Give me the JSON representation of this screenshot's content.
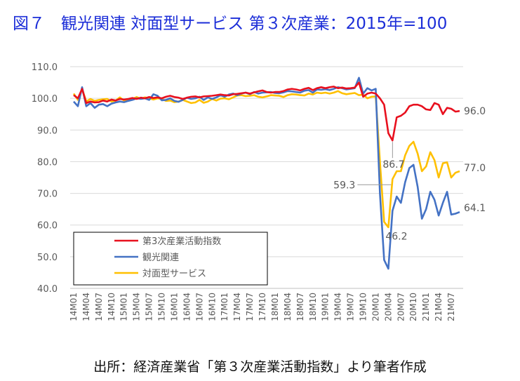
{
  "figure_title": "図７　観光関連 対面型サービス 第３次産業：2015年=100",
  "source_note": "出所：経済産業省「第３次産業活動指数」より筆者作成",
  "colors": {
    "tertiary": "#e8101e",
    "tourism": "#4472c4",
    "face_to_face": "#ffc000",
    "grid": "#d9d9d9",
    "axis_text": "#595959"
  },
  "chart_data": {
    "type": "line",
    "title": "",
    "xlabel": "",
    "ylabel": "",
    "ylim": [
      40,
      110
    ],
    "yticks": [
      "40.0",
      "50.0",
      "60.0",
      "70.0",
      "80.0",
      "90.0",
      "100.0",
      "110.0"
    ],
    "grid": true,
    "legend_placement": "bottom-left",
    "x": [
      "14M01",
      "14M02",
      "14M03",
      "14M04",
      "14M05",
      "14M06",
      "14M07",
      "14M08",
      "14M09",
      "14M10",
      "14M11",
      "14M12",
      "15M01",
      "15M02",
      "15M03",
      "15M04",
      "15M05",
      "15M06",
      "15M07",
      "15M08",
      "15M09",
      "15M10",
      "15M11",
      "15M12",
      "16M01",
      "16M02",
      "16M03",
      "16M04",
      "16M05",
      "16M06",
      "16M07",
      "16M08",
      "16M09",
      "16M10",
      "16M11",
      "16M12",
      "17M01",
      "17M02",
      "17M03",
      "17M04",
      "17M05",
      "17M06",
      "17M07",
      "17M08",
      "17M09",
      "17M10",
      "17M11",
      "17M12",
      "18M01",
      "18M02",
      "18M03",
      "18M04",
      "18M05",
      "18M06",
      "18M07",
      "18M08",
      "18M09",
      "18M10",
      "18M11",
      "18M12",
      "19M01",
      "19M02",
      "19M03",
      "19M04",
      "19M05",
      "19M06",
      "19M07",
      "19M08",
      "19M09",
      "19M10",
      "19M11",
      "19M12",
      "20M01",
      "20M02",
      "20M03",
      "20M04",
      "20M05",
      "20M06",
      "20M07",
      "20M08",
      "20M09",
      "20M10",
      "20M11",
      "20M12",
      "21M01",
      "21M02",
      "21M03",
      "21M04",
      "21M05",
      "21M06",
      "21M07",
      "21M08",
      "21M09"
    ],
    "xtick_labels": [
      "14M01",
      "14M04",
      "14M07",
      "14M10",
      "15M01",
      "15M04",
      "15M07",
      "15M10",
      "16M01",
      "16M04",
      "16M07",
      "16M10",
      "17M01",
      "17M04",
      "17M07",
      "17M10",
      "18M01",
      "18M04",
      "18M07",
      "18M10",
      "19M01",
      "19M04",
      "19M07",
      "19M10",
      "20M01",
      "20M04",
      "20M07",
      "20M10",
      "21M01",
      "21M04",
      "21M07"
    ],
    "series": [
      {
        "name": "第3次産業活動指数",
        "color_key": "tertiary",
        "values": [
          101.0,
          100.0,
          103.0,
          98.5,
          99.0,
          98.7,
          98.8,
          99.3,
          99.0,
          99.6,
          99.3,
          99.8,
          99.6,
          99.8,
          100.1,
          99.8,
          100.2,
          100.0,
          100.4,
          100.1,
          100.3,
          100.0,
          100.5,
          100.8,
          100.4,
          100.2,
          99.8,
          100.2,
          100.5,
          100.6,
          100.3,
          100.6,
          100.7,
          100.8,
          101.0,
          101.2,
          101.0,
          100.9,
          101.3,
          101.4,
          101.6,
          101.8,
          101.5,
          101.9,
          102.2,
          102.5,
          102.0,
          101.8,
          102.0,
          102.0,
          102.3,
          102.8,
          103.0,
          102.8,
          102.5,
          103.0,
          103.3,
          102.6,
          103.2,
          103.5,
          103.2,
          103.5,
          103.7,
          103.2,
          103.4,
          103.1,
          103.2,
          103.4,
          105.0,
          100.5,
          101.5,
          101.8,
          101.5,
          100.0,
          98.0,
          89.0,
          86.7,
          94.0,
          94.5,
          95.5,
          97.5,
          98.0,
          98.0,
          97.5,
          96.5,
          96.3,
          98.5,
          98.0,
          95.0,
          97.0,
          96.7,
          95.8,
          96.0
        ],
        "point_labels": [
          {
            "x": "20M05",
            "text": "86.7"
          },
          {
            "x": "21M09",
            "text": "96.0"
          }
        ]
      },
      {
        "name": "観光関連",
        "color_key": "tourism",
        "values": [
          99.0,
          97.5,
          103.5,
          97.5,
          98.5,
          97.0,
          98.0,
          98.2,
          97.5,
          98.3,
          98.7,
          99.0,
          98.8,
          99.2,
          99.5,
          100.0,
          99.8,
          100.0,
          99.5,
          101.3,
          100.8,
          99.4,
          99.5,
          100.0,
          99.2,
          98.9,
          99.5,
          100.2,
          99.8,
          100.0,
          100.5,
          99.5,
          100.3,
          99.8,
          100.3,
          101.0,
          100.5,
          101.2,
          101.5,
          101.0,
          101.5,
          101.8,
          101.3,
          102.0,
          101.5,
          101.8,
          101.9,
          102.0,
          101.7,
          101.6,
          101.9,
          102.3,
          102.2,
          102.0,
          101.8,
          102.4,
          102.6,
          101.8,
          102.8,
          102.7,
          102.9,
          102.6,
          103.0,
          103.5,
          103.2,
          102.8,
          103.0,
          103.2,
          106.5,
          101.5,
          103.2,
          102.5,
          103.0,
          70.0,
          49.0,
          46.2,
          64.5,
          69.0,
          67.0,
          73.5,
          78.0,
          79.0,
          72.0,
          62.0,
          65.0,
          70.5,
          68.0,
          63.0,
          67.0,
          70.5,
          63.3,
          63.6,
          64.1
        ],
        "point_labels": [
          {
            "x": "20M05",
            "text": "46.2"
          },
          {
            "x": "21M09",
            "text": "64.1"
          }
        ]
      },
      {
        "name": "対面型サービス",
        "color_key": "face_to_face",
        "values": [
          101.5,
          99.5,
          103.0,
          99.0,
          99.8,
          99.2,
          99.5,
          99.7,
          99.8,
          99.0,
          99.3,
          100.3,
          99.3,
          99.5,
          99.8,
          100.4,
          99.9,
          100.3,
          100.0,
          99.6,
          100.0,
          99.8,
          99.2,
          99.3,
          98.8,
          99.0,
          99.5,
          99.0,
          98.5,
          98.7,
          99.5,
          98.6,
          99.0,
          99.8,
          99.3,
          99.9,
          100.0,
          99.7,
          100.3,
          100.9,
          101.0,
          100.7,
          100.8,
          101.0,
          100.5,
          100.3,
          100.6,
          101.0,
          100.9,
          100.8,
          100.4,
          101.0,
          101.3,
          101.2,
          101.0,
          100.9,
          101.5,
          101.2,
          101.8,
          101.6,
          101.8,
          101.5,
          101.8,
          102.3,
          101.6,
          101.3,
          101.5,
          101.7,
          101.0,
          101.2,
          100.0,
          100.5,
          100.6,
          80.0,
          61.0,
          59.3,
          74.5,
          77.0,
          77.0,
          82.0,
          85.0,
          86.3,
          82.5,
          77.0,
          78.5,
          83.0,
          80.5,
          75.0,
          79.5,
          79.8,
          75.0,
          76.5,
          77.0
        ],
        "point_labels": [
          {
            "x": "20M05",
            "text": "59.3"
          },
          {
            "x": "21M09",
            "text": "77.0"
          }
        ]
      }
    ]
  }
}
